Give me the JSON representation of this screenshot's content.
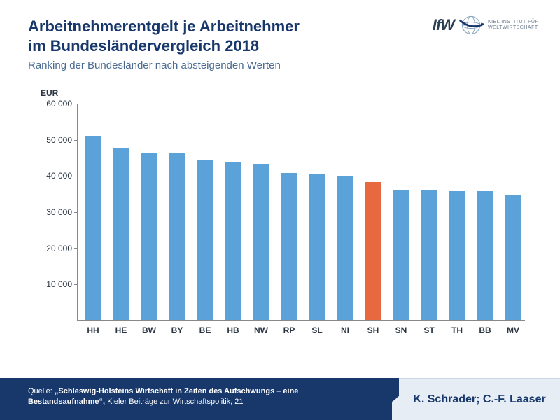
{
  "header": {
    "title_line1": "Arbeitnehmerentgelt je Arbeitnehmer",
    "title_line2": "im Bundesländervergleich 2018",
    "subtitle": "Ranking der Bundesländer nach absteigenden Werten",
    "logo_main": "IfW",
    "logo_sub1": "KIEL INSTITUT FÜR",
    "logo_sub2": "WELTWIRTSCHAFT"
  },
  "chart": {
    "type": "bar",
    "y_axis_label": "EUR",
    "ylim": [
      0,
      60000
    ],
    "ytick_step": 10000,
    "ytick_labels": [
      "10 000",
      "20 000",
      "30 000",
      "40 000",
      "50 000",
      "60 000"
    ],
    "categories": [
      "HH",
      "HE",
      "BW",
      "BY",
      "BE",
      "HB",
      "NW",
      "RP",
      "SL",
      "NI",
      "SH",
      "SN",
      "ST",
      "TH",
      "BB",
      "MV"
    ],
    "values": [
      51000,
      47500,
      46200,
      46000,
      44400,
      43800,
      43100,
      40600,
      40200,
      39700,
      38100,
      35900,
      35800,
      35700,
      35600,
      34400
    ],
    "bar_colors": [
      "#5aa2d8",
      "#5aa2d8",
      "#5aa2d8",
      "#5aa2d8",
      "#5aa2d8",
      "#5aa2d8",
      "#5aa2d8",
      "#5aa2d8",
      "#5aa2d8",
      "#5aa2d8",
      "#e8693f",
      "#5aa2d8",
      "#5aa2d8",
      "#5aa2d8",
      "#5aa2d8",
      "#5aa2d8"
    ],
    "highlight_index": 10,
    "bar_width_ratio": 0.62,
    "background_color": "#ffffff",
    "axis_color": "#888888",
    "tick_fontsize": 12,
    "label_fontsize": 12
  },
  "footer": {
    "source_prefix": "Quelle: ",
    "source_bold": "„Schleswig-Holsteins Wirtschaft in Zeiten des Aufschwungs – eine Bestandsaufnahme“,",
    "source_rest": " Kieler Beiträge zur Wirtschaftspolitik, 21",
    "authors": "K. Schrader; C.-F. Laaser"
  },
  "colors": {
    "title": "#18386b",
    "subtitle": "#4a6a92",
    "footer_bg": "#18386b",
    "footer_right_bg": "#e6edf5"
  }
}
